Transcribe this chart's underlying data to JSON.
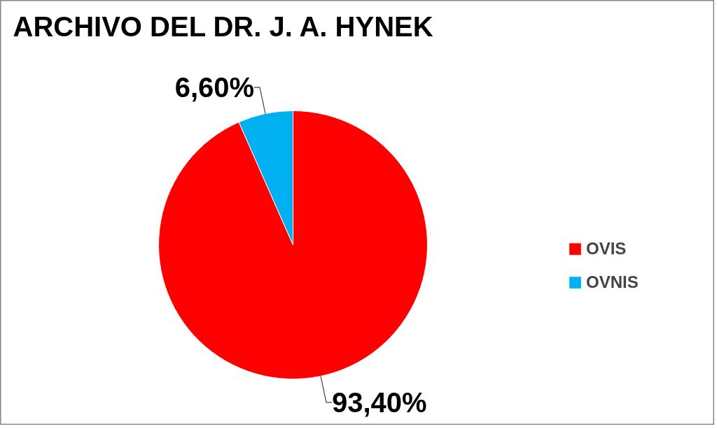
{
  "chart_data": {
    "type": "pie",
    "title": "ARCHIVO DEL DR. J. A. HYNEK",
    "categories": [
      "OVIS",
      "OVNIS"
    ],
    "values": [
      93.4,
      6.6
    ],
    "colors": [
      "#ff0000",
      "#00b0f0"
    ],
    "value_labels": [
      "93,40%",
      "6,60%"
    ],
    "legend": "right"
  }
}
